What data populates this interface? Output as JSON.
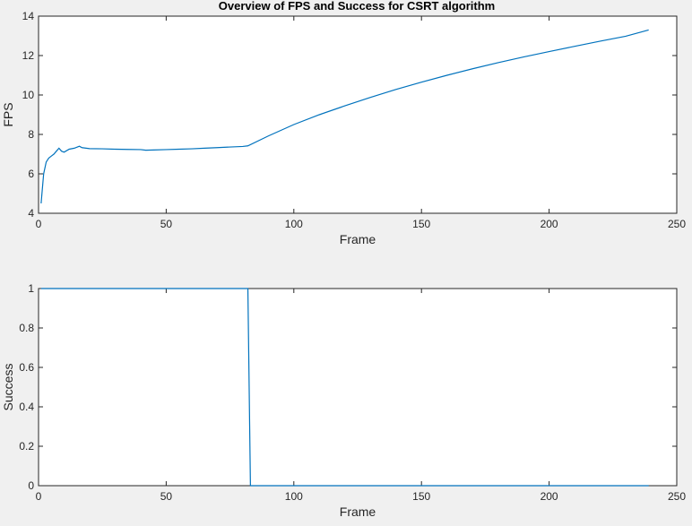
{
  "colors": {
    "series": "#0072bd",
    "axes": "#262626",
    "background": "#f0f0f0"
  },
  "title": "Overview of FPS and Success for CSRT algorithm",
  "chart_data": [
    {
      "type": "line",
      "title": "Overview of FPS and Success for CSRT algorithm",
      "xlabel": "Frame",
      "ylabel": "FPS",
      "xlim": [
        0,
        250
      ],
      "ylim": [
        4,
        14
      ],
      "xticks": [
        "0",
        "50",
        "100",
        "150",
        "200",
        "250"
      ],
      "yticks": [
        "4",
        "6",
        "8",
        "10",
        "12",
        "14"
      ],
      "xtick_values": [
        0,
        50,
        100,
        150,
        200,
        250
      ],
      "ytick_values": [
        4,
        6,
        8,
        10,
        12,
        14
      ],
      "grid": false,
      "series": [
        {
          "x": [
            1,
            2,
            3,
            4,
            5,
            6,
            7,
            8,
            9,
            10,
            12,
            14,
            15,
            16,
            17,
            20,
            25,
            30,
            35,
            40,
            42,
            45,
            50,
            55,
            60,
            65,
            70,
            75,
            80,
            82,
            90,
            100,
            110,
            120,
            130,
            140,
            150,
            160,
            170,
            180,
            190,
            200,
            210,
            220,
            230,
            239
          ],
          "y": [
            4.5,
            6.0,
            6.6,
            6.8,
            6.9,
            7.0,
            7.15,
            7.3,
            7.15,
            7.1,
            7.25,
            7.3,
            7.35,
            7.4,
            7.33,
            7.28,
            7.27,
            7.25,
            7.24,
            7.23,
            7.2,
            7.21,
            7.23,
            7.25,
            7.27,
            7.3,
            7.33,
            7.36,
            7.39,
            7.42,
            7.92,
            8.5,
            9.0,
            9.45,
            9.88,
            10.28,
            10.65,
            11.0,
            11.33,
            11.64,
            11.93,
            12.2,
            12.47,
            12.73,
            12.98,
            13.3
          ]
        }
      ]
    },
    {
      "type": "line",
      "title": "",
      "xlabel": "Frame",
      "ylabel": "Success",
      "xlim": [
        0,
        250
      ],
      "ylim": [
        0,
        1
      ],
      "xticks": [
        "0",
        "50",
        "100",
        "150",
        "200",
        "250"
      ],
      "yticks": [
        "0",
        "0.2",
        "0.4",
        "0.6",
        "0.8",
        "1"
      ],
      "xtick_values": [
        0,
        50,
        100,
        150,
        200,
        250
      ],
      "ytick_values": [
        0,
        0.2,
        0.4,
        0.6,
        0.8,
        1
      ],
      "grid": false,
      "series": [
        {
          "x": [
            1,
            82,
            83,
            239
          ],
          "y": [
            1,
            1,
            0,
            0
          ]
        }
      ]
    }
  ]
}
